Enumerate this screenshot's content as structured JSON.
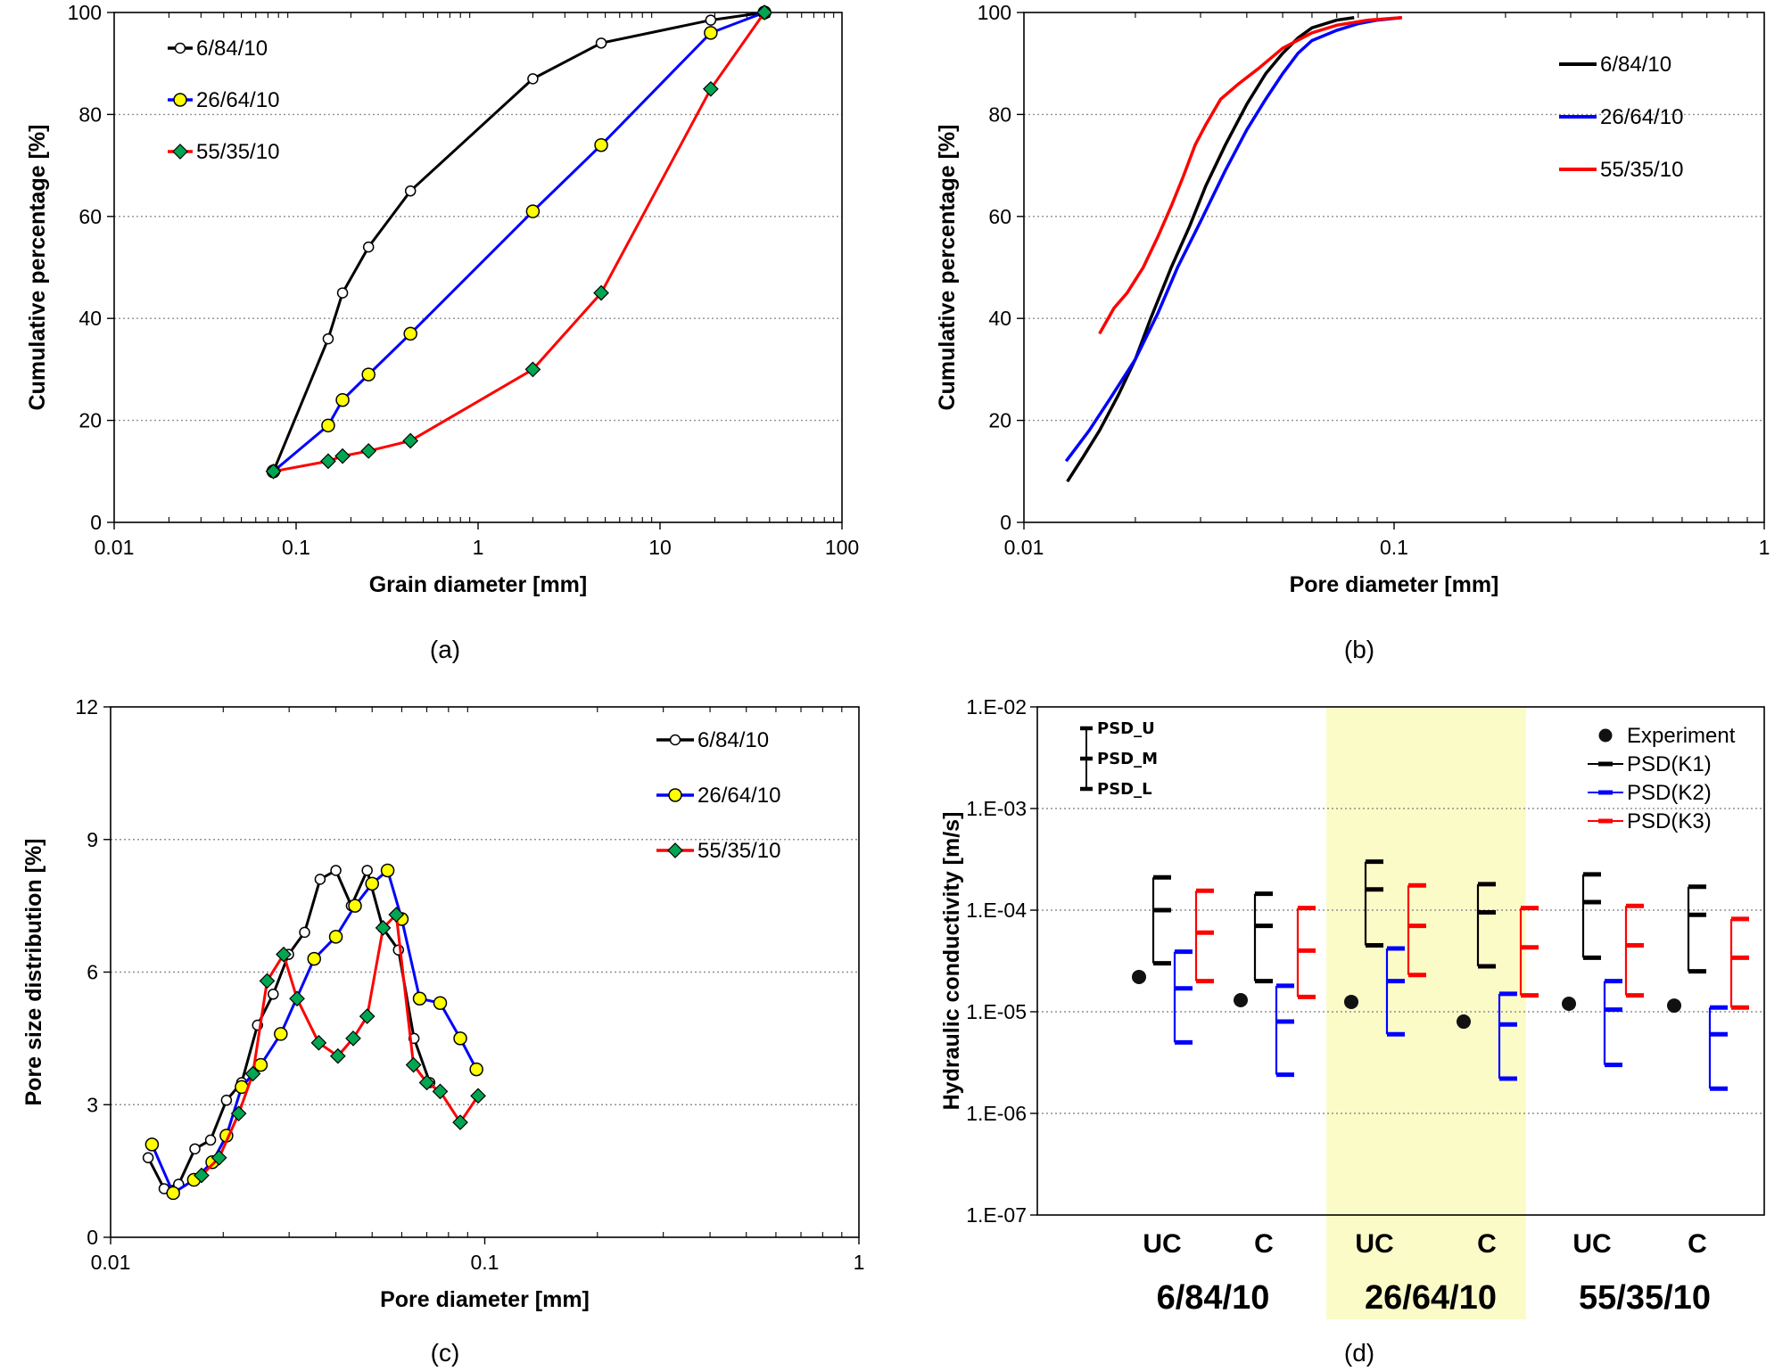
{
  "chart_data": [
    {
      "panel": "(a)",
      "type": "line",
      "xlabel": "Grain diameter [mm]",
      "ylabel": "Cumulative percentage [%]",
      "xscale": "log",
      "xlim": [
        0.01,
        100
      ],
      "ylim": [
        0,
        100
      ],
      "x_ticks": [
        "0.01",
        "0.1",
        "1",
        "10",
        "100"
      ],
      "y_ticks": [
        "0",
        "20",
        "40",
        "60",
        "80",
        "100"
      ],
      "grid": "horizontal",
      "legend_position": "top-left",
      "series": [
        {
          "name": "6/84/10",
          "color": "#000000",
          "marker": "white-circle",
          "x": [
            0.075,
            0.15,
            0.18,
            0.25,
            0.425,
            2,
            4.75,
            19,
            37.5
          ],
          "y": [
            10,
            36,
            45,
            54,
            65,
            87,
            94,
            98.5,
            100
          ]
        },
        {
          "name": "26/64/10",
          "color": "#0000ff",
          "marker": "yellow-circle",
          "x": [
            0.075,
            0.15,
            0.18,
            0.25,
            0.425,
            2,
            4.75,
            19,
            37.5
          ],
          "y": [
            10,
            19,
            24,
            29,
            37,
            61,
            74,
            96,
            100
          ]
        },
        {
          "name": "55/35/10",
          "color": "#ff0000",
          "marker": "green-diamond",
          "x": [
            0.075,
            0.15,
            0.18,
            0.25,
            0.425,
            2,
            4.75,
            19,
            37.5
          ],
          "y": [
            10,
            12,
            13,
            14,
            16,
            30,
            45,
            85,
            100
          ]
        }
      ]
    },
    {
      "panel": "(b)",
      "type": "line",
      "xlabel": "Pore diameter [mm]",
      "ylabel": "Cumulative percentage [%]",
      "xscale": "log",
      "xlim": [
        0.01,
        1
      ],
      "ylim": [
        0,
        100
      ],
      "x_ticks": [
        "0.01",
        "0.1",
        "1"
      ],
      "y_ticks": [
        "0",
        "20",
        "40",
        "60",
        "80",
        "100"
      ],
      "grid": "horizontal",
      "legend_position": "top-right",
      "series": [
        {
          "name": "6/84/10",
          "color": "#000000",
          "x": [
            0.0131,
            0.0145,
            0.016,
            0.018,
            0.02,
            0.022,
            0.025,
            0.028,
            0.031,
            0.035,
            0.04,
            0.045,
            0.05,
            0.055,
            0.06,
            0.07,
            0.078
          ],
          "y": [
            8,
            13,
            18,
            25,
            32,
            40,
            50,
            58,
            66,
            74,
            82,
            88,
            92,
            95,
            97,
            98.5,
            99
          ]
        },
        {
          "name": "26/64/10",
          "color": "#0000ff",
          "x": [
            0.013,
            0.015,
            0.017,
            0.02,
            0.023,
            0.026,
            0.03,
            0.035,
            0.04,
            0.045,
            0.05,
            0.055,
            0.06,
            0.07,
            0.08,
            0.09,
            0.105
          ],
          "y": [
            12,
            18,
            24,
            32,
            41,
            50,
            59,
            69,
            77,
            83,
            88,
            92,
            94.5,
            96.5,
            97.8,
            98.5,
            99
          ]
        },
        {
          "name": "55/35/10",
          "color": "#ff0000",
          "x": [
            0.016,
            0.0175,
            0.019,
            0.021,
            0.023,
            0.025,
            0.027,
            0.029,
            0.031,
            0.034,
            0.038,
            0.043,
            0.05,
            0.06,
            0.07,
            0.085,
            0.105
          ],
          "y": [
            37,
            42,
            45,
            50,
            56,
            62,
            68,
            74,
            78,
            83,
            86,
            89,
            93,
            96,
            97.5,
            98.5,
            99
          ]
        }
      ]
    },
    {
      "panel": "(c)",
      "type": "line",
      "xlabel": "Pore diameter [mm]",
      "ylabel": "Pore size distribution [%]",
      "xscale": "log",
      "xlim": [
        0.01,
        1
      ],
      "ylim": [
        0,
        12
      ],
      "x_ticks": [
        "0.01",
        "0.1",
        "1"
      ],
      "y_ticks": [
        "0",
        "3",
        "6",
        "9",
        "12"
      ],
      "grid": "horizontal",
      "legend_position": "top-right",
      "series": [
        {
          "name": "6/84/10",
          "color": "#000000",
          "marker": "white-circle",
          "x": [
            0.0126,
            0.0139,
            0.0152,
            0.0168,
            0.0185,
            0.0204,
            0.0224,
            0.0247,
            0.0272,
            0.0299,
            0.033,
            0.0363,
            0.04,
            0.044,
            0.0485,
            0.0534,
            0.0588,
            0.0647,
            0.0713
          ],
          "y": [
            1.8,
            1.1,
            1.2,
            2.0,
            2.2,
            3.1,
            3.5,
            4.8,
            5.5,
            6.4,
            6.9,
            8.1,
            8.3,
            7.5,
            8.3,
            7.0,
            6.5,
            4.5,
            3.5
          ]
        },
        {
          "name": "26/64/10",
          "color": "#0000ff",
          "marker": "yellow-circle",
          "x": [
            0.0129,
            0.0147,
            0.0167,
            0.0187,
            0.0204,
            0.0224,
            0.0252,
            0.0285,
            0.035,
            0.04,
            0.045,
            0.05,
            0.055,
            0.06,
            0.067,
            0.076,
            0.086,
            0.095
          ],
          "y": [
            2.1,
            1.0,
            1.3,
            1.7,
            2.3,
            3.4,
            3.9,
            4.6,
            6.3,
            6.8,
            7.5,
            8.0,
            8.3,
            7.2,
            5.4,
            5.3,
            4.5,
            3.8
          ]
        },
        {
          "name": "55/35/10",
          "color": "#ff0000",
          "marker": "green-diamond",
          "x": [
            0.0175,
            0.0195,
            0.022,
            0.024,
            0.0262,
            0.029,
            0.0315,
            0.036,
            0.0405,
            0.0445,
            0.0485,
            0.0535,
            0.058,
            0.0645,
            0.07,
            0.076,
            0.086,
            0.096
          ],
          "y": [
            1.4,
            1.8,
            2.8,
            3.7,
            5.8,
            6.4,
            5.4,
            4.4,
            4.1,
            4.5,
            5.0,
            7.0,
            7.3,
            3.9,
            3.5,
            3.3,
            2.6,
            3.2
          ]
        }
      ]
    },
    {
      "panel": "(d)",
      "type": "scatter",
      "ylabel": "Hydraulic conductivity [m/s]",
      "yscale": "log",
      "ylim": [
        1e-07,
        0.01
      ],
      "y_ticks": [
        "1.E-07",
        "1.E-06",
        "1.E-05",
        "1.E-04",
        "1.E-03",
        "1.E-02"
      ],
      "categories": [
        "UC",
        "C",
        "UC",
        "C",
        "UC",
        "C"
      ],
      "groups": [
        "6/84/10",
        "26/64/10",
        "55/35/10"
      ],
      "highlight_group": "26/64/10",
      "highlight_color": "#fbfbc8",
      "legend_position": "top-right",
      "psd_key": [
        "PSD_U",
        "PSD_M",
        "PSD_L"
      ],
      "series": [
        {
          "name": "Experiment",
          "color": "#000000",
          "kind": "point",
          "values": [
            2.2e-05,
            1.3e-05,
            1.25e-05,
            8e-06,
            1.2e-05,
            1.15e-05
          ]
        },
        {
          "name": "PSD(K1)",
          "color": "#000000",
          "kind": "range",
          "upper": [
            0.00021,
            0.000145,
            0.0003,
            0.00018,
            0.000225,
            0.00017
          ],
          "mid": [
            0.0001,
            7e-05,
            0.00016,
            9.5e-05,
            0.00012,
            9e-05
          ],
          "lower": [
            3e-05,
            2e-05,
            4.5e-05,
            2.8e-05,
            3.4e-05,
            2.5e-05
          ]
        },
        {
          "name": "PSD(K2)",
          "color": "#0000ff",
          "kind": "range",
          "upper": [
            3.9e-05,
            1.8e-05,
            4.2e-05,
            1.5e-05,
            2e-05,
            1.1e-05
          ],
          "mid": [
            1.7e-05,
            8e-06,
            2e-05,
            7.5e-06,
            1.05e-05,
            6e-06
          ],
          "lower": [
            5e-06,
            2.4e-06,
            6e-06,
            2.2e-06,
            3e-06,
            1.75e-06
          ]
        },
        {
          "name": "PSD(K3)",
          "color": "#ff0000",
          "kind": "range",
          "upper": [
            0.000155,
            0.000105,
            0.000175,
            0.000105,
            0.00011,
            8.2e-05
          ],
          "mid": [
            6e-05,
            4e-05,
            7e-05,
            4.3e-05,
            4.5e-05,
            3.4e-05
          ],
          "lower": [
            2e-05,
            1.4e-05,
            2.3e-05,
            1.45e-05,
            1.45e-05,
            1.1e-05
          ]
        }
      ]
    }
  ],
  "captions": [
    "(a)",
    "(b)",
    "(c)",
    "(d)"
  ]
}
